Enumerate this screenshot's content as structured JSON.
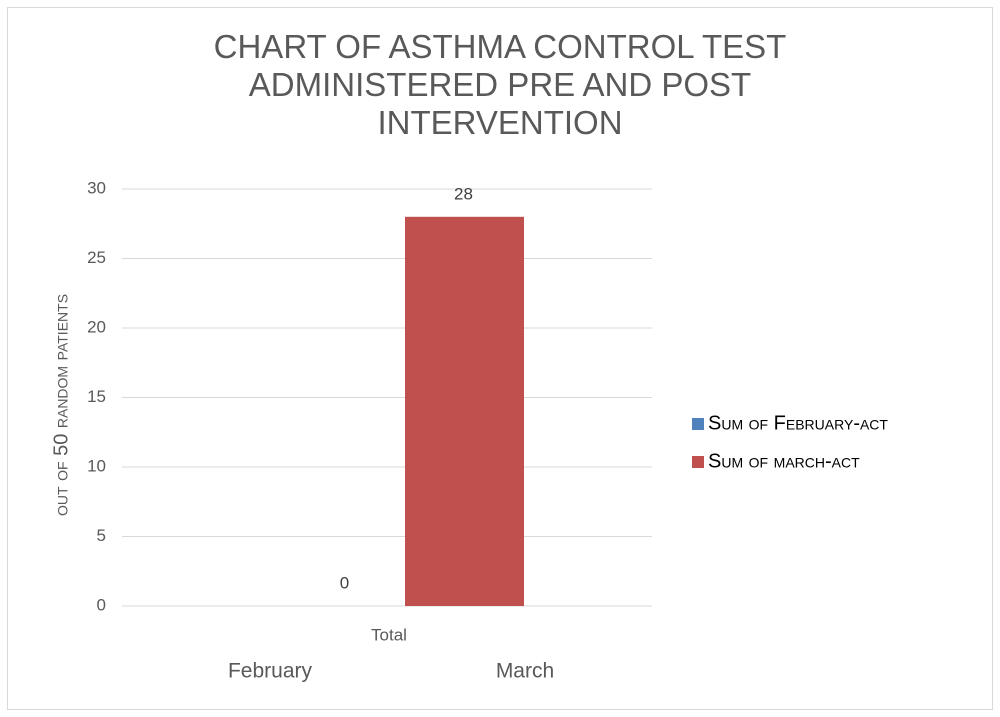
{
  "chart_data": {
    "type": "bar",
    "title": "CHART OF ASTHMA CONTROL TEST ADMINISTERED PRE AND POST INTERVENTION",
    "ylabel": "out of 50 random patients",
    "categories": [
      "Total"
    ],
    "x_sublabels": [
      "February",
      "March"
    ],
    "series": [
      {
        "name": "Sum of February-act",
        "color": "#4f81bd",
        "values": [
          0
        ]
      },
      {
        "name": "Sum of march-act",
        "color": "#c0504d",
        "values": [
          28
        ]
      }
    ],
    "ylim": [
      0,
      30
    ],
    "yticks": [
      0,
      5,
      10,
      15,
      20,
      25,
      30
    ],
    "grid": true,
    "legend": "right"
  }
}
